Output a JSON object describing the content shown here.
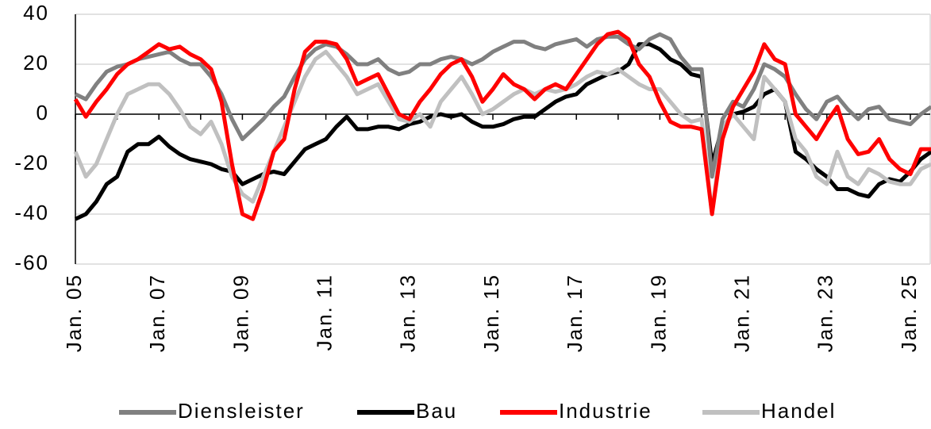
{
  "chart_data": {
    "type": "line",
    "categories": [
      "Jan. 05",
      null,
      null,
      null,
      null,
      null,
      null,
      null,
      "Jan. 07",
      null,
      null,
      null,
      null,
      null,
      null,
      null,
      "Jan. 09",
      null,
      null,
      null,
      null,
      null,
      null,
      null,
      "Jan. 11",
      null,
      null,
      null,
      null,
      null,
      null,
      null,
      "Jan. 13",
      null,
      null,
      null,
      null,
      null,
      null,
      null,
      "Jan. 15",
      null,
      null,
      null,
      null,
      null,
      null,
      null,
      "Jan. 17",
      null,
      null,
      null,
      null,
      null,
      null,
      null,
      "Jan. 19",
      null,
      null,
      null,
      null,
      null,
      null,
      null,
      "Jan. 21",
      null,
      null,
      null,
      null,
      null,
      null,
      null,
      "Jan. 23",
      null,
      null,
      null,
      null,
      null,
      null,
      null,
      "Jan. 25",
      null,
      null
    ],
    "series": [
      {
        "name": "Diensleister",
        "color": "#808080",
        "values": [
          8,
          6,
          12,
          17,
          19,
          20,
          22,
          23,
          24,
          25,
          22,
          20,
          20,
          15,
          8,
          -2,
          -10,
          -6,
          -2,
          3,
          7,
          15,
          22,
          26,
          28,
          27,
          24,
          20,
          20,
          22,
          18,
          16,
          17,
          20,
          20,
          22,
          23,
          22,
          20,
          22,
          25,
          27,
          29,
          29,
          27,
          26,
          28,
          29,
          30,
          27,
          30,
          31,
          31,
          28,
          26,
          30,
          32,
          30,
          23,
          18,
          18,
          -25,
          -2,
          5,
          3,
          10,
          20,
          18,
          15,
          8,
          2,
          -2,
          5,
          7,
          2,
          -2,
          2,
          3,
          -2,
          -3,
          -4,
          0,
          3
        ]
      },
      {
        "name": "Bau",
        "color": "#000000",
        "values": [
          -42,
          -40,
          -35,
          -28,
          -25,
          -15,
          -12,
          -12,
          -9,
          -13,
          -16,
          -18,
          -19,
          -20,
          -22,
          -23,
          -28,
          -26,
          -24,
          -23,
          -24,
          -19,
          -14,
          -12,
          -10,
          -5,
          -1,
          -6,
          -6,
          -5,
          -5,
          -6,
          -4,
          -3,
          -1,
          0,
          -1,
          0,
          -3,
          -5,
          -5,
          -4,
          -2,
          -1,
          -1,
          2,
          5,
          7,
          8,
          12,
          14,
          16,
          17,
          20,
          28,
          28,
          26,
          22,
          20,
          16,
          15,
          -20,
          -5,
          0,
          1,
          3,
          8,
          10,
          5,
          -15,
          -18,
          -22,
          -25,
          -30,
          -30,
          -32,
          -33,
          -28,
          -26,
          -27,
          -23,
          -18,
          -15
        ]
      },
      {
        "name": "Industrie",
        "color": "#ff0000",
        "values": [
          6,
          -1,
          5,
          10,
          16,
          20,
          22,
          25,
          28,
          26,
          27,
          24,
          22,
          18,
          5,
          -20,
          -40,
          -42,
          -30,
          -15,
          -10,
          10,
          25,
          29,
          29,
          28,
          22,
          12,
          14,
          16,
          8,
          0,
          -2,
          5,
          10,
          16,
          20,
          22,
          15,
          5,
          10,
          16,
          12,
          10,
          6,
          10,
          12,
          10,
          16,
          22,
          28,
          32,
          33,
          30,
          20,
          15,
          5,
          -3,
          -5,
          -5,
          -6,
          -40,
          -10,
          3,
          10,
          17,
          28,
          22,
          20,
          0,
          -5,
          -10,
          -3,
          3,
          -10,
          -16,
          -15,
          -10,
          -18,
          -22,
          -24,
          -14,
          -14
        ]
      },
      {
        "name": "Handel",
        "color": "#c0c0c0",
        "values": [
          -15,
          -25,
          -20,
          -10,
          0,
          8,
          10,
          12,
          12,
          8,
          2,
          -5,
          -8,
          -3,
          -12,
          -25,
          -32,
          -35,
          -25,
          -15,
          -5,
          5,
          15,
          22,
          25,
          20,
          15,
          8,
          10,
          12,
          5,
          -2,
          -3,
          0,
          -5,
          5,
          10,
          15,
          8,
          0,
          2,
          5,
          8,
          10,
          8,
          10,
          9,
          10,
          12,
          15,
          17,
          16,
          18,
          15,
          12,
          10,
          10,
          5,
          0,
          -3,
          -2,
          -40,
          -5,
          0,
          -5,
          -10,
          15,
          10,
          5,
          -10,
          -15,
          -25,
          -28,
          -15,
          -25,
          -28,
          -22,
          -24,
          -27,
          -28,
          -28,
          -22,
          -20
        ]
      }
    ],
    "ylim": [
      -60,
      40
    ],
    "yticks": [
      -60,
      -40,
      -20,
      0,
      20,
      40
    ],
    "grid": true,
    "legend": "bottom"
  }
}
